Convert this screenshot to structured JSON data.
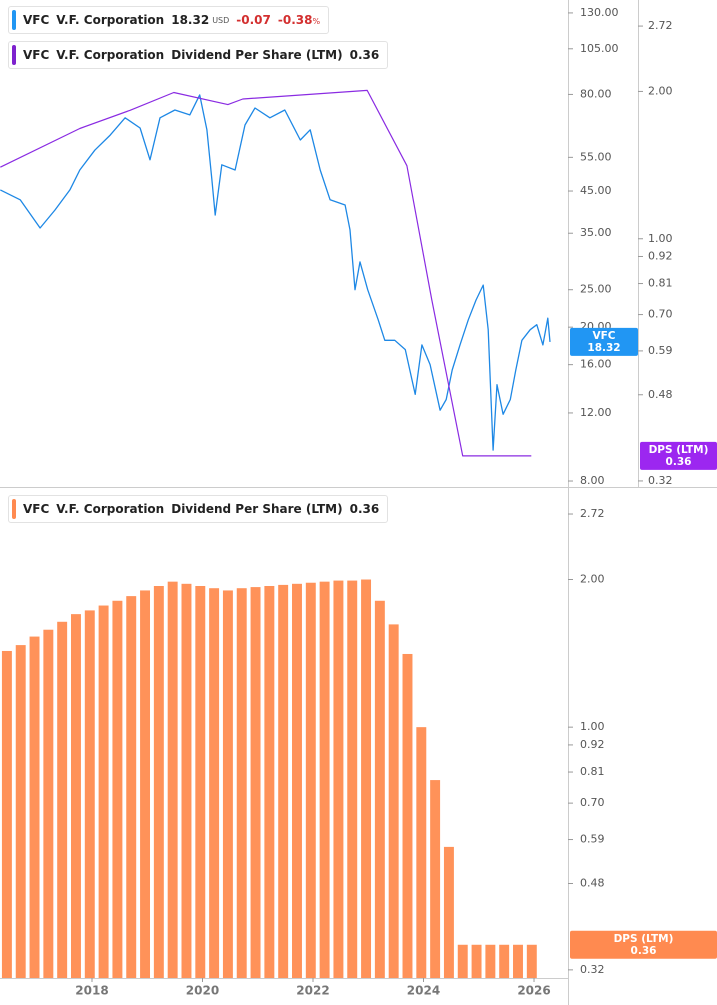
{
  "chart_data": [
    {
      "type": "line",
      "log_scale": true,
      "legend": [
        {
          "symbol": "VFC",
          "name": "V.F. Corporation",
          "value": 18.32,
          "unit": "USD",
          "change": -0.07,
          "change_pct": -0.38,
          "pct_sign": "%",
          "color": "#2196f3"
        },
        {
          "symbol": "VFC",
          "name": "V.F. Corporation",
          "metric": "Dividend Per Share (LTM)",
          "value": 0.36,
          "color": "#7e22ce"
        }
      ],
      "xlim": [
        2016.335,
        2026.615
      ],
      "ylim": [
        7.72,
        140.4
      ],
      "yticks": [
        {
          "value": 130,
          "label": "130.00"
        },
        {
          "value": 105,
          "label": "105.00"
        },
        {
          "value": 80,
          "label": "80.00"
        },
        {
          "value": 55,
          "label": "55.00"
        },
        {
          "value": 45,
          "label": "45.00"
        },
        {
          "value": 35,
          "label": "35.00"
        },
        {
          "value": 25,
          "label": "25.00"
        },
        {
          "value": 20,
          "label": "20.00"
        },
        {
          "value": 16,
          "label": "16.00"
        },
        {
          "value": 12,
          "label": "12.00"
        },
        {
          "value": 8,
          "label": "8.00"
        }
      ],
      "y2lim": [
        0.311,
        3.075
      ],
      "y2ticks": [
        2.72,
        {
          "value": 2,
          "label": "2.00"
        },
        {
          "value": 1,
          "label": "1.00"
        },
        0.92,
        0.81,
        {
          "value": 0.7,
          "label": "0.70"
        },
        0.59,
        0.48,
        0.32
      ],
      "series": [
        {
          "name": "VFC",
          "color": "#1e88e5",
          "badge_color": "#2196f3",
          "x": [
            2016.34,
            2016.7,
            2017.06,
            2017.33,
            2017.6,
            2017.78,
            2018.05,
            2018.33,
            2018.6,
            2018.87,
            2019.05,
            2019.23,
            2019.5,
            2019.77,
            2019.95,
            2020.08,
            2020.17,
            2020.23,
            2020.35,
            2020.59,
            2020.77,
            2020.95,
            2021.22,
            2021.49,
            2021.77,
            2021.95,
            2022.13,
            2022.31,
            2022.58,
            2022.67,
            2022.76,
            2022.85,
            2022.99,
            2023.18,
            2023.3,
            2023.48,
            2023.67,
            2023.85,
            2023.97,
            2024.12,
            2024.3,
            2024.41,
            2024.52,
            2024.66,
            2024.81,
            2024.95,
            2025.08,
            2025.17,
            2025.26,
            2025.33,
            2025.44,
            2025.57,
            2025.67,
            2025.78,
            2025.93,
            2026.05,
            2026.16,
            2026.25,
            2026.29
          ],
          "values": [
            45.3,
            42.7,
            36.1,
            40.2,
            45.3,
            51.0,
            57.4,
            62.8,
            69.6,
            65.5,
            54.2,
            69.6,
            72.9,
            70.8,
            79.8,
            64.8,
            48.1,
            39.0,
            52.6,
            51.0,
            66.7,
            73.8,
            69.6,
            72.9,
            61.0,
            64.8,
            51.0,
            42.7,
            41.4,
            35.7,
            25.0,
            29.5,
            25.0,
            20.9,
            18.5,
            18.5,
            17.5,
            13.4,
            18.0,
            16.0,
            12.2,
            13.0,
            15.5,
            18.0,
            20.9,
            23.5,
            25.7,
            19.7,
            9.62,
            14.2,
            11.9,
            13.0,
            15.5,
            18.5,
            19.7,
            20.3,
            18.0,
            21.1,
            18.32
          ]
        },
        {
          "name": "DPS (LTM)",
          "color": "#8a2be2",
          "badge_color": "#9c27f0",
          "axis": "y2",
          "x": [
            2016.34,
            2017.78,
            2018.69,
            2019.48,
            2020.46,
            2020.73,
            2022.98,
            2023.7,
            2024.15,
            2024.71,
            2025.95
          ],
          "values": [
            1.4,
            1.68,
            1.83,
            1.99,
            1.88,
            1.93,
            2.01,
            1.41,
            0.75,
            0.36,
            0.36
          ]
        }
      ]
    },
    {
      "type": "bar",
      "log_scale": true,
      "legend": {
        "symbol": "VFC",
        "name": "V.F. Corporation",
        "metric": "Dividend Per Share (LTM)",
        "value": 0.36,
        "color": "#ff8a50"
      },
      "name": "DPS (LTM)",
      "color": "#ff9259",
      "badge_color": "#ff8a50",
      "xlim": [
        2016.335,
        2026.615
      ],
      "xticks": [
        2018,
        2020,
        2022,
        2024,
        2026
      ],
      "ylim": [
        0.308,
        2.974
      ],
      "yticks": [
        2.72,
        {
          "value": 2,
          "label": "2.00"
        },
        {
          "value": 1,
          "label": "1.00"
        },
        0.92,
        0.81,
        {
          "value": 0.7,
          "label": "0.70"
        },
        0.59,
        0.48,
        0.32
      ],
      "x": [
        2016.46,
        2016.71,
        2016.96,
        2017.21,
        2017.46,
        2017.71,
        2017.96,
        2018.21,
        2018.46,
        2018.71,
        2018.96,
        2019.21,
        2019.46,
        2019.71,
        2019.96,
        2020.21,
        2020.46,
        2020.71,
        2020.96,
        2021.21,
        2021.46,
        2021.71,
        2021.96,
        2022.21,
        2022.46,
        2022.71,
        2022.96,
        2023.21,
        2023.46,
        2023.71,
        2023.96,
        2024.21,
        2024.46,
        2024.71,
        2024.96,
        2025.21,
        2025.46,
        2025.71,
        2025.96
      ],
      "values": [
        1.43,
        1.47,
        1.53,
        1.58,
        1.64,
        1.7,
        1.73,
        1.77,
        1.81,
        1.85,
        1.9,
        1.94,
        1.98,
        1.96,
        1.94,
        1.92,
        1.9,
        1.92,
        1.93,
        1.94,
        1.95,
        1.96,
        1.97,
        1.98,
        1.99,
        1.99,
        2.0,
        1.81,
        1.62,
        1.41,
        1.0,
        0.78,
        0.57,
        0.36,
        0.36,
        0.36,
        0.36,
        0.36,
        0.36
      ]
    }
  ]
}
